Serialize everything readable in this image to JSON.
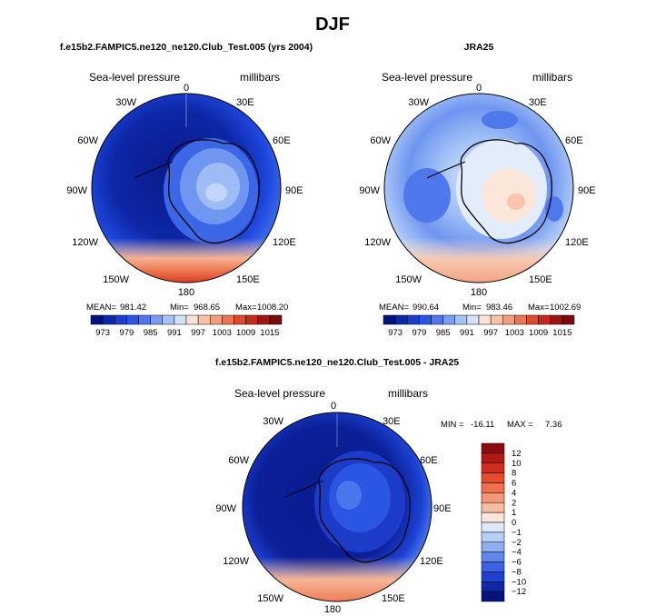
{
  "figure_title": "DJF",
  "colors": {
    "deep_blue": "#0a1e8c",
    "mid_blue": "#1f4fe0",
    "light_blue": "#8cb4f5",
    "pale_blue": "#d2e4fb",
    "salmon": "#f4a27e",
    "red": "#d73a1e",
    "coast": "#000000"
  },
  "chart_data": [
    {
      "type": "heatmap",
      "projection": "south-polar-stereographic",
      "title": "f.e15b2.FAMPIC5.ne120_ne120.Club_Test.005 (yrs 2004)",
      "subtitle_left": "Sea-level pressure",
      "subtitle_right": "millibars",
      "stats": {
        "mean_label": "MEAN=",
        "mean": "981.42",
        "min_label": "Min=",
        "min": "968.65",
        "max_label": "Max=",
        "max": "1008.20"
      },
      "longitude_labels": [
        "0",
        "30E",
        "60E",
        "90E",
        "120E",
        "150E",
        "180",
        "150W",
        "120W",
        "90W",
        "60W",
        "30W"
      ],
      "levels": [
        973,
        976,
        979,
        982,
        985,
        988,
        991,
        994,
        997,
        1000,
        1003,
        1006,
        1009,
        1012,
        1015
      ],
      "colorbar_labels": [
        "973",
        "979",
        "985",
        "991",
        "997",
        "1003",
        "1009",
        "1015"
      ],
      "colorbar_colors": [
        "#08127e",
        "#0b2aa8",
        "#1a3fd0",
        "#2a56e8",
        "#4f78f0",
        "#7a9ef4",
        "#a7c2f7",
        "#d2e2fa",
        "#fbe4d6",
        "#f8c2a6",
        "#f49e7c",
        "#ee7552",
        "#e04a2c",
        "#c4291b",
        "#9e1512",
        "#7a0a0c"
      ]
    },
    {
      "type": "heatmap",
      "projection": "south-polar-stereographic",
      "title": "JRA25",
      "subtitle_left": "Sea-level pressure",
      "subtitle_right": "millibars",
      "stats": {
        "mean_label": "MEAN=",
        "mean": "990.64",
        "min_label": "Min=",
        "min": "983.46",
        "max_label": "Max=",
        "max": "1002.69"
      },
      "longitude_labels": [
        "0",
        "30E",
        "60E",
        "90E",
        "120E",
        "150E",
        "180",
        "150W",
        "120W",
        "90W",
        "60W",
        "30W"
      ],
      "levels": [
        973,
        976,
        979,
        982,
        985,
        988,
        991,
        994,
        997,
        1000,
        1003,
        1006,
        1009,
        1012,
        1015
      ],
      "colorbar_labels": [
        "973",
        "979",
        "985",
        "991",
        "997",
        "1003",
        "1009",
        "1015"
      ],
      "colorbar_colors": [
        "#08127e",
        "#0b2aa8",
        "#1a3fd0",
        "#2a56e8",
        "#4f78f0",
        "#7a9ef4",
        "#a7c2f7",
        "#d2e2fa",
        "#fbe4d6",
        "#f8c2a6",
        "#f49e7c",
        "#ee7552",
        "#e04a2c",
        "#c4291b",
        "#9e1512",
        "#7a0a0c"
      ]
    },
    {
      "type": "heatmap",
      "projection": "south-polar-stereographic",
      "title": "f.e15b2.FAMPIC5.ne120_ne120.Club_Test.005 - JRA25",
      "subtitle_left": "Sea-level pressure",
      "subtitle_right": "millibars",
      "stats": {
        "min_label": "MIN =",
        "min": "-16.11",
        "max_label": "MAX =",
        "max": "7.36"
      },
      "longitude_labels": [
        "0",
        "30E",
        "60E",
        "90E",
        "120E",
        "150E",
        "180",
        "150W",
        "120W",
        "90W",
        "60W",
        "30W"
      ],
      "levels": [
        -12,
        -10,
        -8,
        -6,
        -4,
        -2,
        -1,
        0,
        1,
        2,
        4,
        6,
        8,
        10,
        12
      ],
      "colorbar_labels": [
        "12",
        "10",
        "8",
        "6",
        "4",
        "2",
        "1",
        "0",
        "−1",
        "−2",
        "−4",
        "−6",
        "−8",
        "−10",
        "−12"
      ],
      "colorbar_colors": [
        "#8a0c0c",
        "#b11a12",
        "#d0301b",
        "#e54d2a",
        "#f06f4c",
        "#f49677",
        "#f7bda3",
        "#fce6da",
        "#dde9fb",
        "#b6cff6",
        "#8dacf1",
        "#6287ea",
        "#3a62e2",
        "#1e42cf",
        "#0d28a8",
        "#06137a"
      ]
    }
  ]
}
